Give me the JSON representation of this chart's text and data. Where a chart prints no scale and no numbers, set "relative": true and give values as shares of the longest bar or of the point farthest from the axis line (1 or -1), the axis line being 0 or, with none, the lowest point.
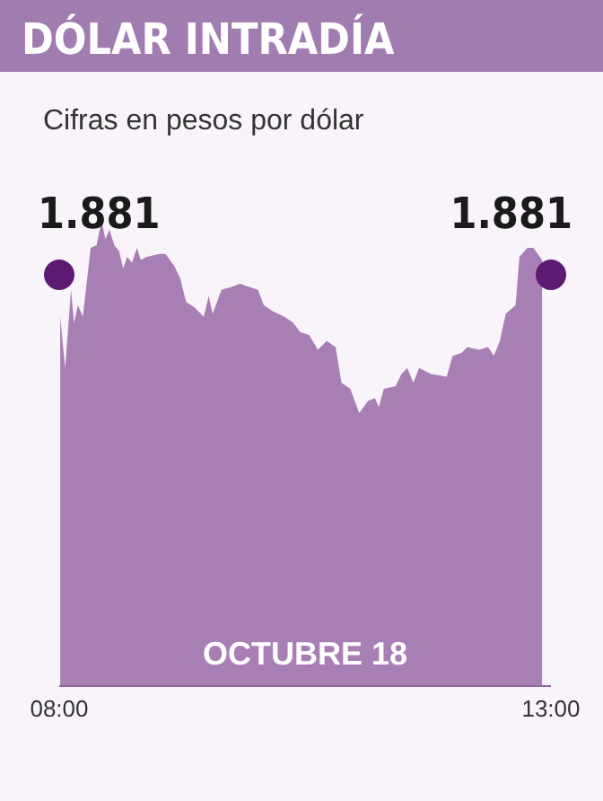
{
  "chart_data": {
    "type": "area",
    "title": "DÓLAR INTRADÍA",
    "subtitle": "Cifras en pesos por dólar",
    "relative": true,
    "annotations": [
      "OCTUBRE 18",
      {
        "text": "1.881",
        "x": 8,
        "y": 0.884
      },
      {
        "text": "1.881",
        "x": 13,
        "y": 0.884
      }
    ],
    "series": [
      {
        "color": "#a87fb4",
        "x": [
          8.01,
          8.06,
          8.12,
          8.15,
          8.19,
          8.24,
          8.32,
          8.38,
          8.43,
          8.47,
          8.51,
          8.56,
          8.61,
          8.65,
          8.69,
          8.74,
          8.79,
          8.83,
          8.89,
          9.02,
          9.08,
          9.17,
          9.23,
          9.29,
          9.38,
          9.47,
          9.52,
          9.56,
          9.65,
          9.75,
          9.84,
          9.93,
          10.02,
          10.08,
          10.17,
          10.29,
          10.38,
          10.45,
          10.54,
          10.63,
          10.72,
          10.81,
          10.87,
          10.96,
          11.05,
          11.14,
          11.21,
          11.25,
          11.3,
          11.42,
          11.48,
          11.54,
          11.6,
          11.66,
          11.78,
          11.94,
          12,
          12.09,
          12.15,
          12.27,
          12.36,
          12.42,
          12.48,
          12.54,
          12.64,
          12.68,
          12.76,
          12.82,
          12.91
        ],
        "values": [
          0.794,
          0.684,
          0.852,
          0.781,
          0.819,
          0.794,
          0.942,
          0.948,
          1,
          0.961,
          0.981,
          0.948,
          0.935,
          0.897,
          0.923,
          0.91,
          0.942,
          0.916,
          0.923,
          0.929,
          0.929,
          0.903,
          0.877,
          0.826,
          0.813,
          0.794,
          0.839,
          0.8,
          0.852,
          0.858,
          0.865,
          0.858,
          0.852,
          0.819,
          0.806,
          0.794,
          0.781,
          0.761,
          0.755,
          0.723,
          0.742,
          0.729,
          0.652,
          0.639,
          0.587,
          0.613,
          0.619,
          0.6,
          0.639,
          0.645,
          0.671,
          0.684,
          0.652,
          0.684,
          0.671,
          0.665,
          0.71,
          0.716,
          0.729,
          0.723,
          0.729,
          0.71,
          0.742,
          0.8,
          0.819,
          0.923,
          0.942,
          0.942,
          0.916
        ]
      },
      {
        "type": "scatter",
        "marker": "circle",
        "color": "#5c1a72",
        "x": [
          8,
          13
        ],
        "values": [
          0.884,
          0.884
        ]
      }
    ],
    "xlim": [
      8,
      13
    ],
    "xticks": [
      {
        "value": 8,
        "label": "08:00"
      },
      {
        "value": 13,
        "label": "13:00"
      }
    ]
  }
}
